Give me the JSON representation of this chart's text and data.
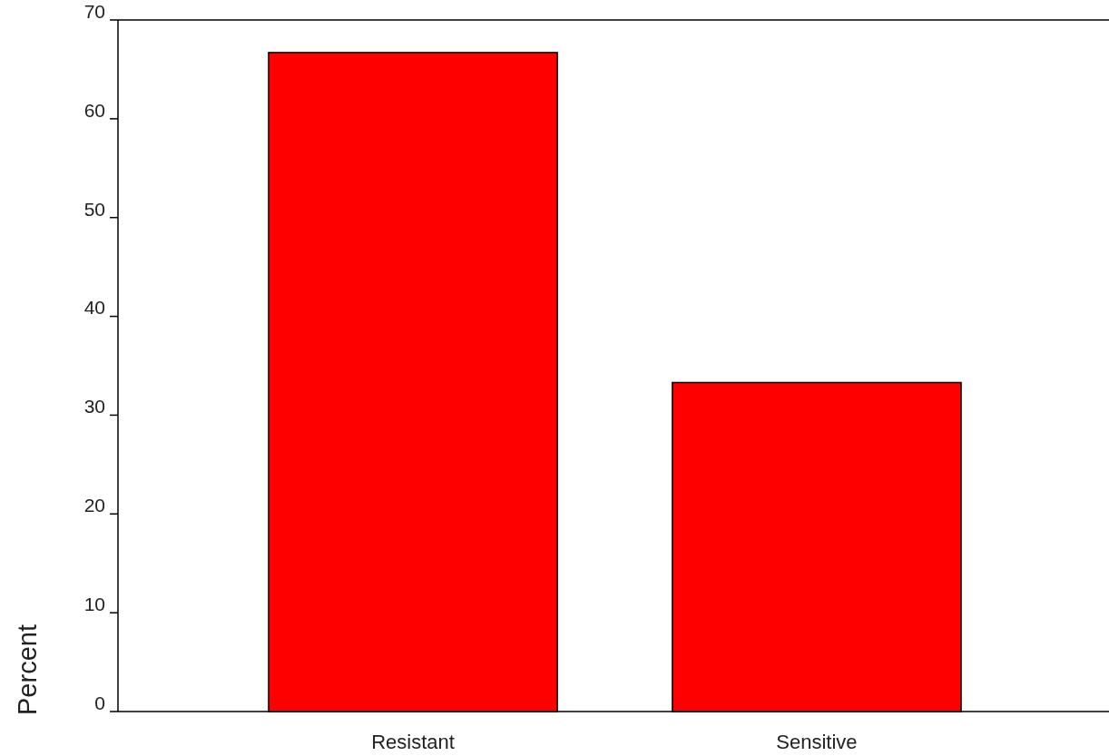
{
  "chart_data": {
    "type": "bar",
    "ylabel": "Percent",
    "categories": [
      "Resistant",
      "Sensitive"
    ],
    "values": [
      66.7,
      33.3
    ],
    "color": "#ff0000",
    "ylim": [
      0,
      70
    ],
    "yticks": [
      0,
      10,
      20,
      30,
      40,
      50,
      60,
      70
    ],
    "grid": false
  }
}
